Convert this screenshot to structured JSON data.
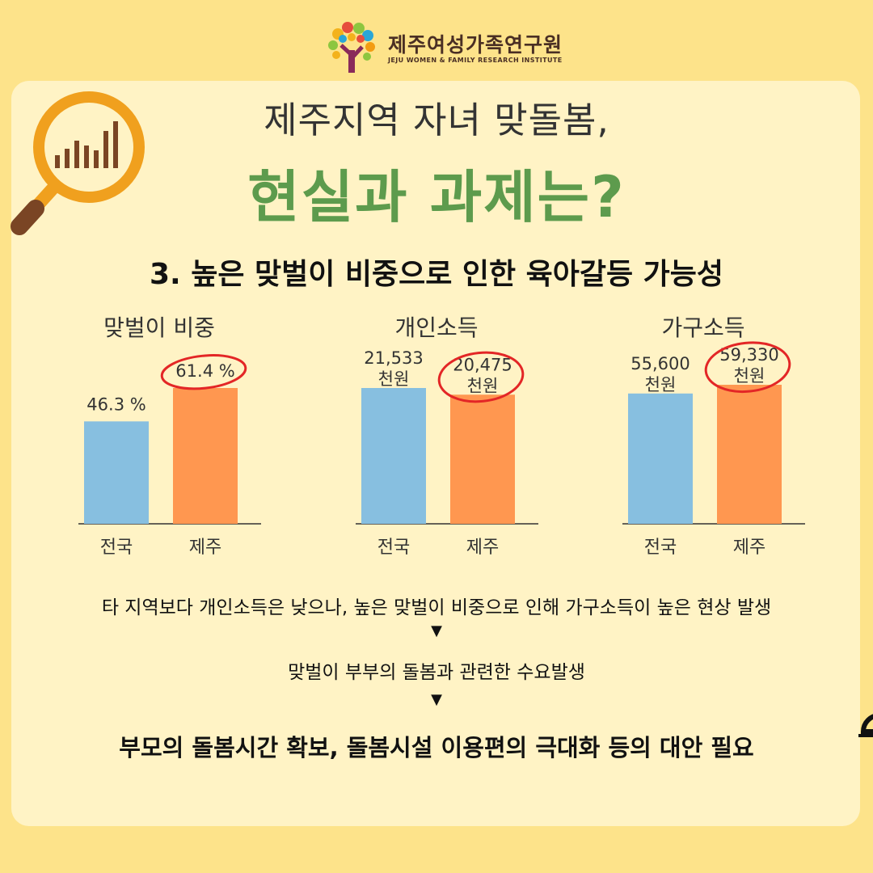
{
  "logo": {
    "name": "제주여성가족연구원",
    "subtitle": "JEJU WOMEN & FAMILY RESEARCH INSTITUTE"
  },
  "header": {
    "title_line1": "제주지역 자녀 맞돌봄,",
    "title_line2": "현실과 과제는?"
  },
  "section": {
    "subtitle": "3. 높은 맞벌이 비중으로 인한 육아갈등 가능성"
  },
  "colors": {
    "background": "#fde38a",
    "panel": "#fff3c5",
    "accent_green": "#5d9b4d",
    "bar_national": "#87bfe0",
    "bar_jeju": "#ff9750",
    "highlight_circle": "#e32626"
  },
  "chart_data": [
    {
      "type": "bar",
      "title": "맞벌이 비중",
      "categories": [
        "전국",
        "제주"
      ],
      "values": [
        46.3,
        61.4
      ],
      "value_labels": [
        "46.3 %",
        "61.4 %"
      ],
      "highlighted": "제주"
    },
    {
      "type": "bar",
      "title": "개인소득",
      "categories": [
        "전국",
        "제주"
      ],
      "values": [
        21533,
        20475
      ],
      "value_labels": [
        "21,533",
        "20,475"
      ],
      "unit_label": "천원",
      "highlighted": "제주"
    },
    {
      "type": "bar",
      "title": "가구소득",
      "categories": [
        "전국",
        "제주"
      ],
      "values": [
        55600,
        59330
      ],
      "value_labels": [
        "55,600",
        "59,330"
      ],
      "unit_label": "천원",
      "highlighted": "제주"
    }
  ],
  "conclusion": {
    "line1": "타 지역보다 개인소득은 낮으나, 높은 맞벌이 비중으로 인해 가구소득이 높은 현상 발생",
    "arrow": "▼",
    "line2": "맞벌이 부부의 돌봄과 관련한 수요발생",
    "line3": "부모의 돌봄시간 확보, 돌봄시설 이용편의 극대화 등의 대안 필요"
  }
}
